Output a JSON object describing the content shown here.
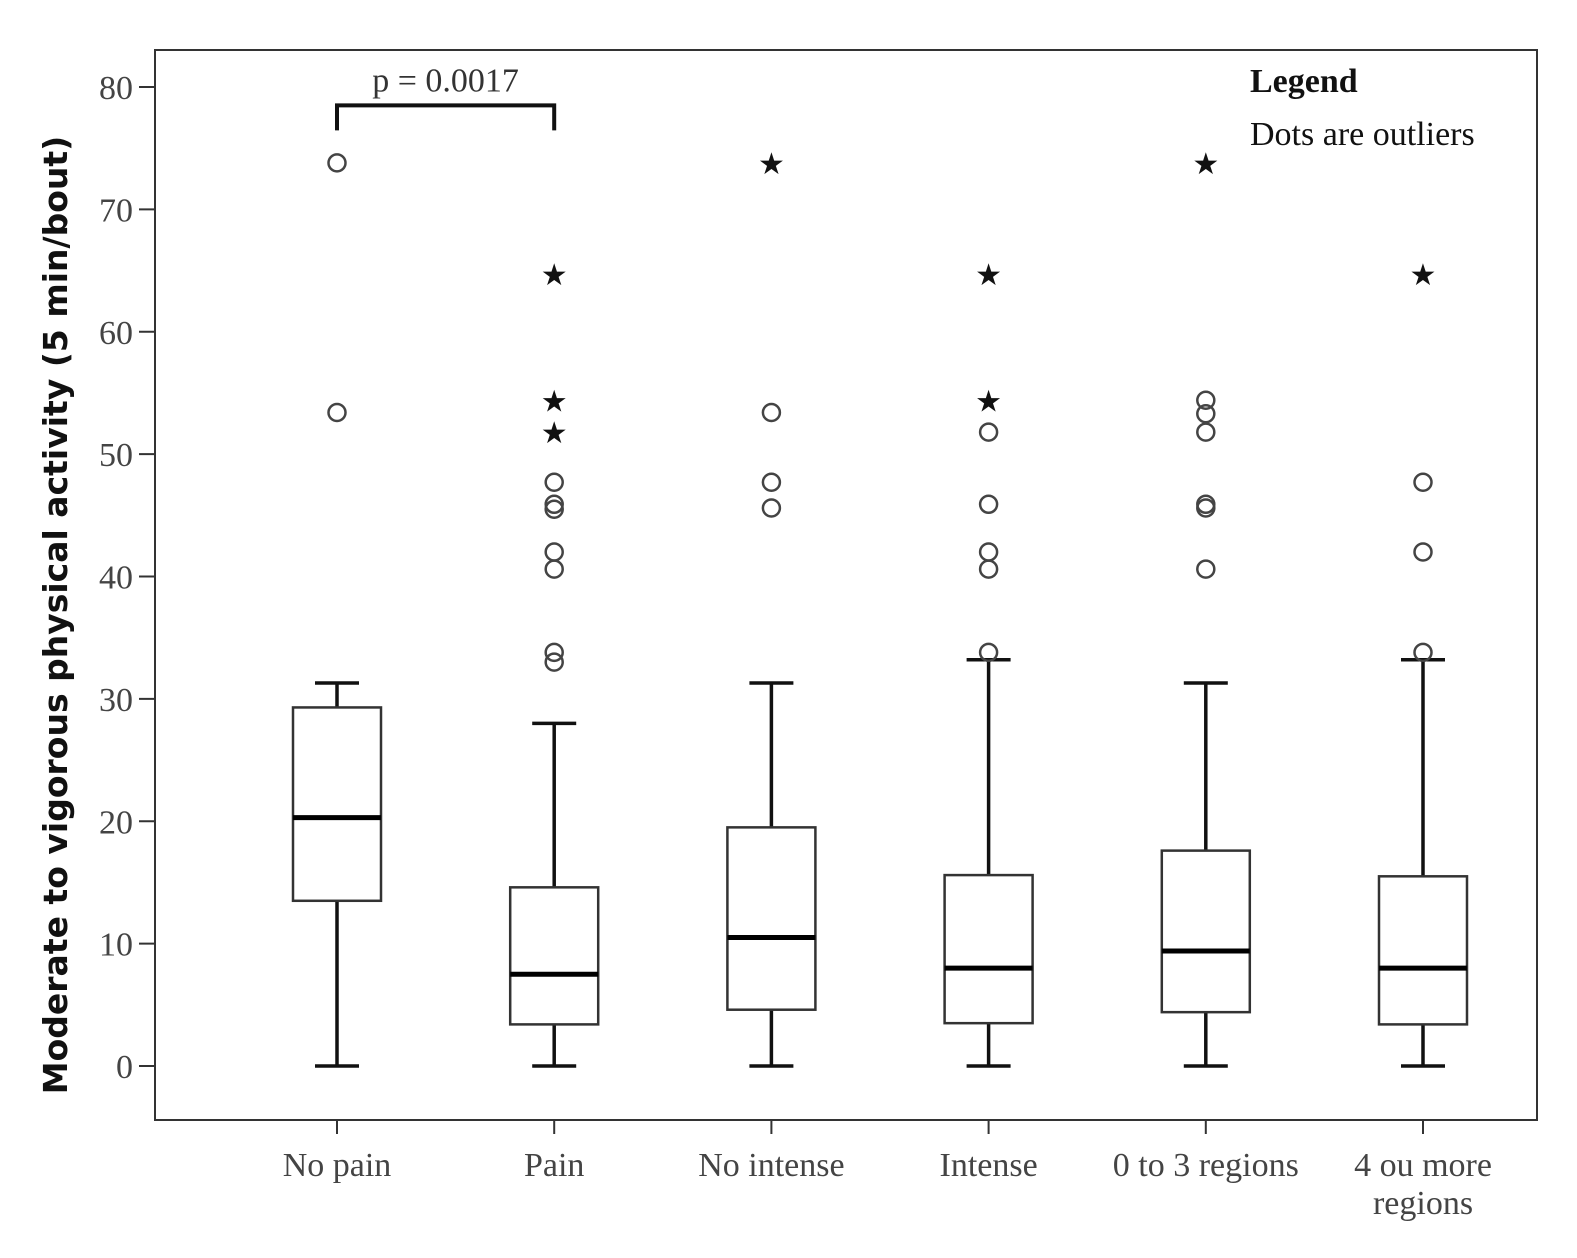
{
  "chart_data": {
    "type": "boxplot",
    "ylabel": "Moderate to vigorous physical activity (5 min/bout)",
    "xlabel": "",
    "ylim": [
      -5,
      83
    ],
    "yticks": [
      0,
      10,
      20,
      30,
      40,
      50,
      60,
      70,
      80
    ],
    "categories": [
      {
        "lines": [
          "No pain"
        ]
      },
      {
        "lines": [
          "Pain"
        ]
      },
      {
        "lines": [
          "No intense"
        ]
      },
      {
        "lines": [
          "Intense"
        ]
      },
      {
        "lines": [
          "0 to 3 regions"
        ]
      },
      {
        "lines": [
          "4 ou more",
          "regions"
        ]
      }
    ],
    "boxes": [
      {
        "whisker_low": 0,
        "q1": 13.5,
        "median": 20.3,
        "q3": 29.3,
        "whisker_high": 31.3,
        "outliers": [
          53.4,
          73.8
        ],
        "extremes": []
      },
      {
        "whisker_low": 0,
        "q1": 3.4,
        "median": 7.5,
        "q3": 14.6,
        "whisker_high": 28.0,
        "outliers": [
          33.0,
          33.8,
          40.6,
          42.0,
          45.5,
          45.9,
          47.7
        ],
        "extremes": [
          51.8,
          54.4,
          64.7
        ]
      },
      {
        "whisker_low": 0,
        "q1": 4.6,
        "median": 10.5,
        "q3": 19.5,
        "whisker_high": 31.3,
        "outliers": [
          45.6,
          47.7,
          53.4
        ],
        "extremes": [
          73.8
        ]
      },
      {
        "whisker_low": 0,
        "q1": 3.5,
        "median": 8.0,
        "q3": 15.6,
        "whisker_high": 33.2,
        "outliers": [
          33.8,
          40.6,
          42.0,
          45.9,
          51.8
        ],
        "extremes": [
          54.4,
          64.7
        ]
      },
      {
        "whisker_low": 0,
        "q1": 4.4,
        "median": 9.4,
        "q3": 17.6,
        "whisker_high": 31.3,
        "outliers": [
          40.6,
          45.6,
          45.9,
          51.8,
          53.3,
          54.4
        ],
        "extremes": [
          73.8
        ]
      },
      {
        "whisker_low": 0,
        "q1": 3.4,
        "median": 8.0,
        "q3": 15.5,
        "whisker_high": 33.2,
        "outliers": [
          33.8,
          42.0,
          47.7
        ],
        "extremes": [
          64.7
        ]
      }
    ],
    "annotation": {
      "text": "p = 0.0017",
      "from_category": 0,
      "to_category": 1,
      "y": 78.5
    },
    "legend": {
      "title": "Legend",
      "text": "Dots are outliers",
      "placement": "top-right"
    },
    "grid": false
  }
}
